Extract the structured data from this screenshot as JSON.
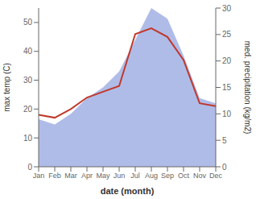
{
  "chart_data": {
    "type": "line",
    "xlabel": "date (month)",
    "ylabel": "max temp (C)",
    "y2label": "med. precipitation (kg/m2)",
    "categories": [
      "Jan",
      "Feb",
      "Mar",
      "Apr",
      "May",
      "Jun",
      "Jul",
      "Aug",
      "Sep",
      "Oct",
      "Nov",
      "Dec"
    ],
    "series": [
      {
        "type": "area",
        "axis": "y2",
        "color": "#b0bce8",
        "values": [
          9,
          8,
          10,
          13,
          15,
          18,
          24,
          30,
          28,
          21,
          13,
          12
        ]
      },
      {
        "type": "line",
        "color": "#c0392b",
        "values": [
          18,
          17,
          20,
          24,
          26,
          28,
          46,
          48,
          45,
          37,
          22,
          21
        ]
      }
    ],
    "ylim": [
      0,
      55
    ],
    "yticks": [
      0,
      10,
      20,
      30,
      40,
      50
    ],
    "y2lim": [
      0,
      30
    ],
    "y2ticks": [
      0,
      5,
      10,
      15,
      20,
      25,
      30
    ],
    "grid": false
  }
}
